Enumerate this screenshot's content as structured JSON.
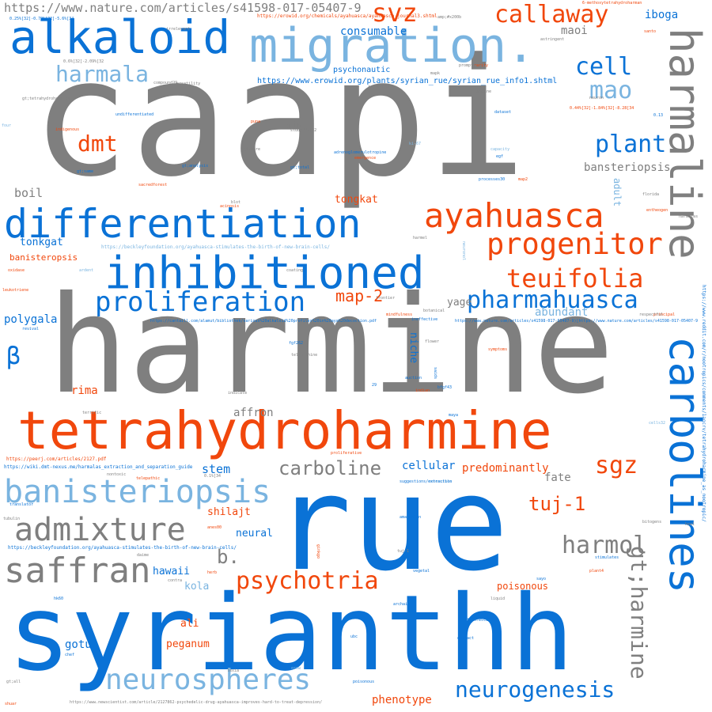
{
  "words": {
    "caapi": "caapi",
    "harmine": "harmine",
    "rue": "rue",
    "syrianthh": "syrianthh",
    "tetrahydroharmine": "tetrahydroharmine",
    "differentiation": "differentiation",
    "inhibitioned": "inhibitioned",
    "migration": "migration.",
    "alkaloid": "alkaloid",
    "harmaline": "harmaline",
    "carbolines": "carbolines",
    "ayahuasca": "ayahuasca",
    "banisteriopsis": "banisteriopsis",
    "admixture": "admixture",
    "saffran": "saffran",
    "neurospheres": "neurospheres",
    "proliferation": "proliferation",
    "pharmahuasca": "pharmahuasca",
    "progenitor": "progenitor",
    "teuifolia": "teuifolia",
    "psychotria": "psychotria",
    "carboline": "carboline",
    "harmol": "harmol",
    "neurogenesis": "neurogenesis",
    "gtharmine": "gt;harmine",
    "callaway": "callaway",
    "svz": "svz",
    "cell": "cell",
    "mao": "mao",
    "plant": "plant",
    "dmt": "dmt",
    "harmala": "harmala",
    "sgz": "sgz",
    "tuj1": "tuj-1",
    "map2": "map-2",
    "beta": "β",
    "b": "b.",
    "stem": "stem",
    "url_top": "https://www.nature.com/articles/s41598-017-05407-9",
    "url_erowid": "https://www.erowid.org/plants/syrian_rue/syrian_rue_info1.shtml",
    "iboga": "iboga",
    "consumable": "consumable",
    "maoi": "maoi",
    "banstereopsis": "bansteriopsis",
    "boil": "boil",
    "tongkat": "tongkat",
    "tonkgat": "tonkgat",
    "polygala": "polygala",
    "yage": "yage",
    "rima": "rima",
    "affron": "affron",
    "cellular": "cellular",
    "predominantly": "predominantly",
    "fate": "fate",
    "shilajt": "shilajt",
    "neural": "neural",
    "hawaii": "hawaii",
    "kola": "kola",
    "ali": "ali",
    "peganum": "peganum",
    "gotu": "gotu",
    "phenotype": "phenotype",
    "poisonous": "poisonous",
    "psychonautic": "psychonautic",
    "abundant": "abundant",
    "niche": "niche",
    "banisteropsis": "banisteropsis",
    "sin": "sin",
    "adult": "adult"
  },
  "small_words": [
    "https://erowid.org/chemicals/ayahuasca/ayahuasca_journal3.shtml",
    "6-methoxytetrahydroharman",
    "https://beckleyfoundation.org/ayahuasca-stimulates-the-birth-of-new-brain-cells/",
    "https://www.newscientist.com/article/2127862-psychedelic-drug-ayahuasca-improves-hard-to-treat-depression/",
    "https://www.reddit.com/r/nootropics/comments/1agcrv/tetrahydroharmine_as_nootropic/",
    "https://cantaill.com/alamut/bibliothek/various%20alkaloid%20profiles%20in%20aya%20decoction.pdf",
    "https://www.nature.com/articles/s41598-017-05407-9)[https://www.nature.com/articles/s41598-017-05407-9",
    "https://wiki.dmt-nexus.me/harmalas_extraction_and_separation_guide",
    "https://peerj.com/articles/2127.pdf",
    "oligodendrocytes23",
    "ki-67-stained",
    "undifferentiated",
    "neuron",
    "indigenous",
    "sacredforest",
    "oxidase",
    "leukotriene",
    "revival",
    "indicate",
    "terrific",
    "telepathic",
    "translator",
    "tubulin",
    "shilajit",
    "shuar",
    "amazonian",
    "poisonous",
    "gt;harmalol",
    "fluorescent",
    "tribal",
    "plant4",
    "stimulates",
    "heal",
    "bitogens",
    "cells32",
    "principal",
    "respectful",
    "symptoms",
    "botanical",
    "mindfulness",
    "versatility",
    "reverence",
    "imagine",
    "capacity",
    "rarity",
    "mapk",
    "dataset",
    "processes30",
    "entheogen",
    "harmalas",
    "florida",
    "maya",
    "bfgf43",
    "indian",
    "auction",
    "saids",
    "flower",
    "coating",
    "harmel",
    "frontier",
    "ineffective",
    "emergence",
    "adrenoglomerulotropine",
    "archaic",
    "vegetal",
    "herb",
    "ginkgo",
    "nontoxic",
    "daime",
    "chef",
    "lexia",
    "contra",
    "grow",
    "liquid",
    "extract",
    "proliferative",
    "santo",
    "astringent",
    "amp;#x200b",
    "puna",
    "study**.[32",
    "gt;here",
    "gt;same",
    "gt;analysis",
    "gt;total",
    "gt;tetrahydroharmine",
    "compound29",
    "four",
    "blot",
    "acinosis",
    "ardent",
    "irrelevant",
    "prompts",
    "ki-67",
    "map2",
    "egf",
    "fgf262",
    "tuj-1",
    "neuronol",
    "telepathine",
    "reversible",
    "suggestions/extraction",
    "29",
    "ubc",
    "0.25%[32]-0.79%[32]-5.6%[34",
    "0.44%[32]-1.84%[32]-8.28[34",
    "0.6%[32]-2.09%[32",
    "0.1%[34",
    "0.13",
    "gt;all",
    "hk60",
    "anes00",
    "sayo"
  ]
}
